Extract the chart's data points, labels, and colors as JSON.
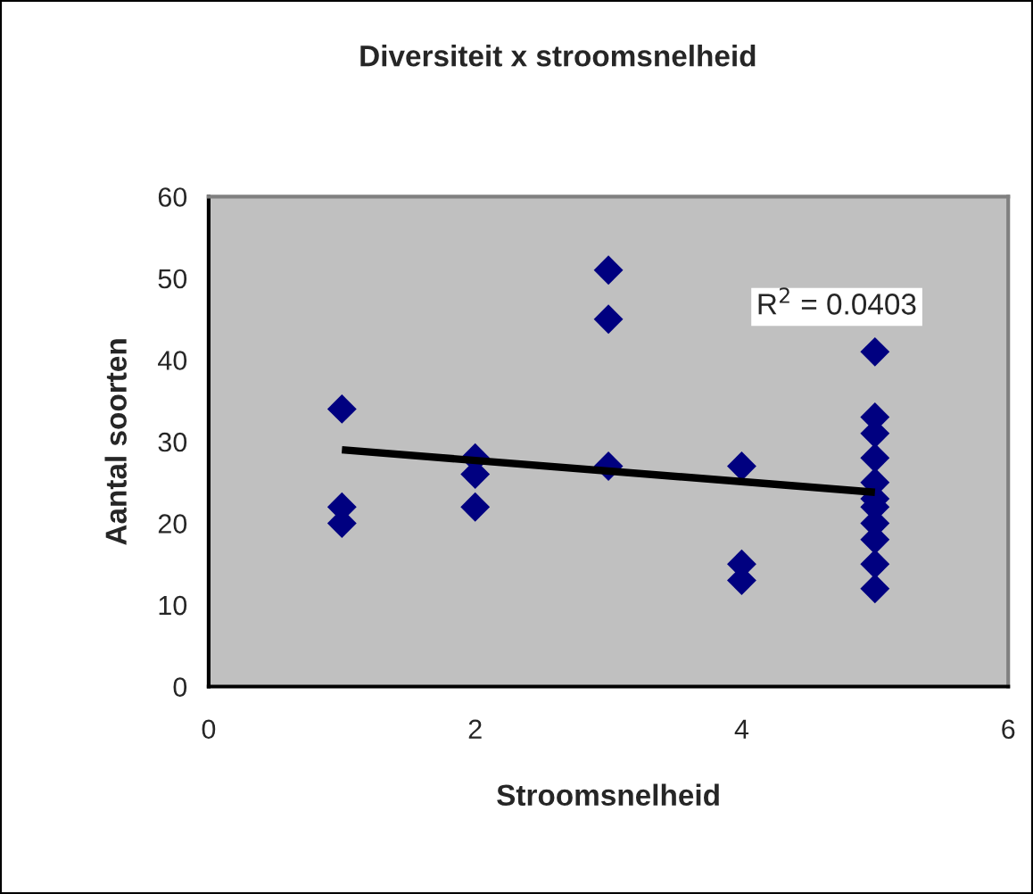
{
  "chart_data": {
    "type": "scatter",
    "title": "Diversiteit x stroomsnelheid",
    "xlabel": "Stroomsnelheid",
    "ylabel": "Aantal soorten",
    "series": [
      {
        "color": "#000080",
        "marker": "diamond",
        "x": [
          1,
          1,
          1,
          2,
          2,
          2,
          3,
          3,
          3,
          4,
          4,
          4,
          5,
          5,
          5,
          5,
          5,
          5,
          5,
          5,
          5,
          5,
          5
        ],
        "values": [
          34,
          22,
          20,
          28,
          26,
          22,
          51,
          45,
          27,
          27,
          15,
          13,
          41,
          33,
          31,
          28,
          25,
          23,
          22,
          20,
          18,
          15,
          12
        ]
      },
      {
        "type": "line",
        "color": "#000000",
        "marker": "none",
        "x": [
          1,
          5
        ],
        "values": [
          29.0,
          23.8
        ]
      }
    ],
    "annotations": [
      "R$^{2}$ = 0.0403"
    ],
    "xlim": [
      0,
      6
    ],
    "xticks": [
      0,
      2,
      4,
      6
    ],
    "ylim": [
      0,
      60
    ],
    "yticks": [
      0,
      10,
      20,
      30,
      40,
      50,
      60
    ],
    "grid": false,
    "legend": false
  }
}
